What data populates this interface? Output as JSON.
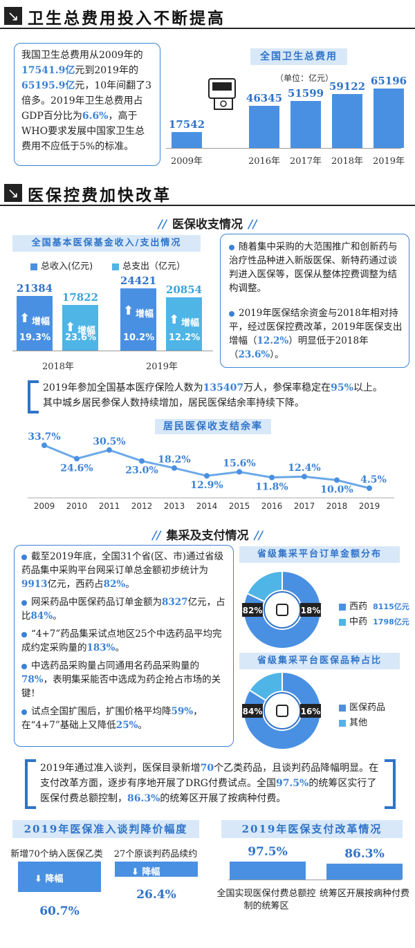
{
  "section1": {
    "title": "卫生总费用投入不断提高",
    "text_parts": [
      "我国卫生总费用从2009年的",
      "17541.9亿",
      "元到2019年的",
      "65195.9亿",
      "元，10年间翻了3倍多。2019年卫生总费用占GDP百分比为",
      "6.6%",
      "，高于WHO要求发展中国家卫生总费用不应低于5%的标准。"
    ],
    "chart_data": {
      "type": "bar",
      "title": "全国卫生总费用",
      "unit": "（单位：亿元）",
      "categories": [
        "2009年",
        "2016年",
        "2017年",
        "2018年",
        "2019年"
      ],
      "values": [
        17542,
        46345,
        51599,
        59122,
        65196
      ],
      "ylim": [
        0,
        70000
      ]
    }
  },
  "section2": {
    "title": "医保控费加快改革",
    "sub1": "医保收支情况",
    "fund_chart": {
      "type": "bar",
      "title": "全国基本医保基金收入/支出情况",
      "legend": [
        "总收入(亿元)",
        "总支出（亿元）"
      ],
      "categories": [
        "2018年",
        "2019年"
      ],
      "series": [
        {
          "name": "总收入(亿元)",
          "values": [
            21384,
            24421
          ],
          "growth": [
            "19.3%",
            "10.2%"
          ]
        },
        {
          "name": "总支出（亿元）",
          "values": [
            17822,
            20854
          ],
          "growth": [
            "23.6%",
            "12.2%"
          ]
        }
      ],
      "inc_label": "增幅",
      "color_income": "#4a90e2",
      "color_expense": "#4fb4e6"
    },
    "bullet1": "随着集中采购的大范围推广和创新药与治疗性品种进入新版医保、新特药通过谈判进入医保等，医保从整体控费调整为结构调整。",
    "bullet2_parts": [
      "2019年医保结余资金与2018年相对持平，经过医保控费改革，2019年医保支出增幅（",
      "12.2%",
      "）明显低于2018年（",
      "23.6%",
      "）。"
    ],
    "bracket1_parts": [
      "2019年参加全国基本医疗保险人数为",
      "135407",
      "万人，参保率稳定在",
      "95%",
      "以上。其中城乡居民参保人数持续增加，居民医保结余率持续下降。"
    ],
    "line_chart": {
      "type": "line",
      "title": "居民医保收支结余率",
      "x": [
        "2009",
        "2010",
        "2011",
        "2012",
        "2013",
        "2014",
        "2015",
        "2016",
        "2017",
        "2018",
        "2019"
      ],
      "values": [
        33.7,
        24.6,
        30.5,
        23.0,
        18.2,
        12.9,
        15.6,
        11.8,
        12.4,
        10.0,
        4.5
      ],
      "labels": [
        "33.7%",
        "24.6%",
        "30.5%",
        "23.0%",
        "18.2%",
        "12.9%",
        "15.6%",
        "11.8%",
        "12.4%",
        "10.0%",
        "4.5%"
      ],
      "ylim": [
        0,
        40
      ]
    },
    "sub2": "集采及支付情况",
    "bullets2": [
      {
        "parts": [
          "截至2019年底，全国31个省(区、市)通过省级药品集中采购平台网采订单总金额初步统计为",
          "9913",
          "亿元，西药占",
          "82%",
          "。"
        ]
      },
      {
        "parts": [
          "网采药品中医保药品订单金额为",
          "8327",
          "亿元，占比",
          "84%",
          "。"
        ]
      },
      {
        "parts": [
          "“4+7”药品集采试点地区25个中选药品平均完成约定采购量的",
          "183%",
          "。"
        ]
      },
      {
        "parts": [
          "中选药品采购量占同通用名药品采购量的",
          "78%",
          "，表明集采能否中选成为药企抢占市场的关键！"
        ]
      },
      {
        "parts": [
          "试点全国扩围后，扩围价格平均降",
          "59%",
          "，在“4+7”基础上又降低",
          "25%",
          "。"
        ]
      }
    ],
    "pie1": {
      "type": "pie",
      "title": "省级集采平台订单金额分布",
      "slices": [
        {
          "name": "西药",
          "value": 82,
          "label": "82%",
          "amount": "8115亿元"
        },
        {
          "name": "中药",
          "value": 18,
          "label": "18%",
          "amount": "1798亿元"
        }
      ]
    },
    "pie2": {
      "type": "pie",
      "title": "省级集采平台医保品种占比",
      "slices": [
        {
          "name": "医保药品",
          "value": 84,
          "label": "84%"
        },
        {
          "name": "其他",
          "value": 16,
          "label": "16%"
        }
      ]
    },
    "bracket2_parts": [
      "2019年通过准入谈判，医保目录新增",
      "70",
      "个乙类药品，且谈判药品降幅明显。在支付改革方面，逐步有序地开展了DRG付费试点。全国",
      "97.5%",
      "的统筹区实行了医保付费总额控制，",
      "86.3%",
      "的统筹区开展了按病种付费。"
    ],
    "neg_chart": {
      "type": "bar",
      "title": "2019年医保准入谈判降价幅度",
      "categories": [
        "新增70个纳入医保乙类",
        "27个原谈判药品续约"
      ],
      "values": [
        60.7,
        26.4
      ],
      "labels": [
        "60.7%",
        "26.4%"
      ],
      "bar_label": "降幅"
    },
    "pay_chart": {
      "type": "bar",
      "title": "2019年医保支付改革情况",
      "categories": [
        "全国实现医保付费总额控制的统筹区",
        "统筹区开展按病种付费"
      ],
      "values": [
        97.5,
        86.3
      ],
      "labels": [
        "97.5%",
        "86.3%"
      ]
    }
  }
}
